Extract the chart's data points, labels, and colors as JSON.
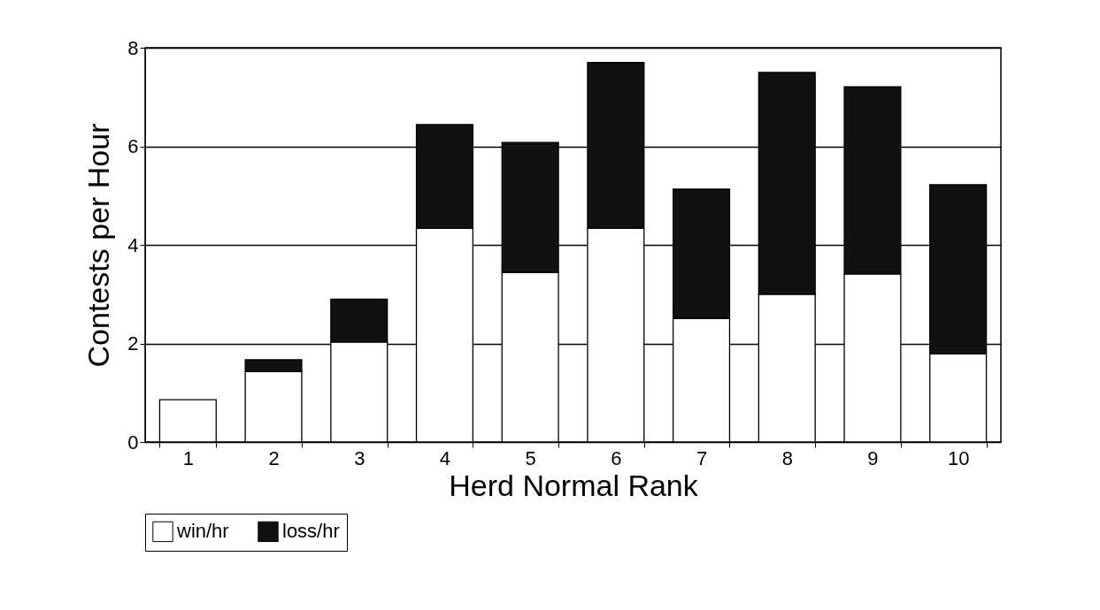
{
  "chart_data": {
    "type": "bar",
    "xlabel": "Herd Normal Rank",
    "ylabel": "Contests per Hour",
    "categories": [
      "1",
      "2",
      "3",
      "4",
      "5",
      "6",
      "7",
      "8",
      "9",
      "10"
    ],
    "series": [
      {
        "name": "win/hr",
        "color": "#ffffff",
        "values": [
          0.86,
          1.43,
          2.03,
          4.34,
          3.44,
          4.34,
          2.51,
          3.0,
          3.41,
          1.79
        ]
      },
      {
        "name": "loss/hr",
        "color": "#111111",
        "values": [
          null,
          0.24,
          0.87,
          2.1,
          2.64,
          3.36,
          2.62,
          4.5,
          3.8,
          3.43
        ]
      }
    ],
    "stacked": true,
    "ylim": [
      0,
      8
    ],
    "yticks": [
      0,
      2,
      4,
      6,
      8
    ],
    "grid": "y",
    "legend": "bottom"
  }
}
